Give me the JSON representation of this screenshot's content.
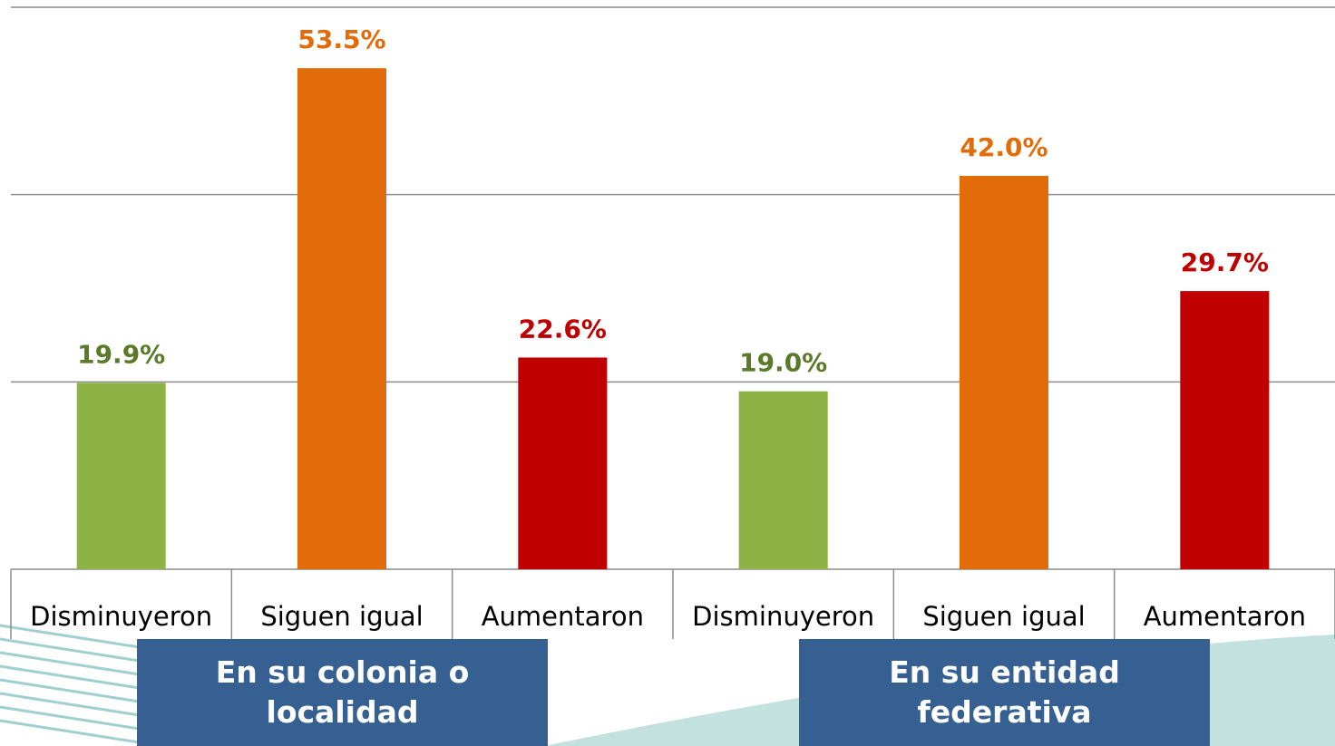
{
  "chart_data": {
    "type": "bar",
    "categories": [
      "Disminuyeron",
      "Siguen igual",
      "Aumentaron",
      "Disminuyeron",
      "Siguen igual",
      "Aumentaron"
    ],
    "values": [
      19.9,
      53.5,
      22.6,
      19.0,
      42.0,
      29.7
    ],
    "value_labels": [
      "19.9%",
      "53.5%",
      "22.6%",
      "19.0%",
      "42.0%",
      "29.7%"
    ],
    "colors": [
      "#8db347",
      "#e36c0a",
      "#c00000",
      "#8db347",
      "#e36c0a",
      "#c00000"
    ],
    "label_colors": [
      "#5a7a2a",
      "#e36c0a",
      "#c00000",
      "#5a7a2a",
      "#e36c0a",
      "#c00000"
    ],
    "group_labels": [
      "En su colonia o localidad",
      "En su entidad federativa"
    ],
    "ylim": [
      0,
      60
    ],
    "yticks": [
      0,
      20,
      40,
      60
    ],
    "grid": true
  }
}
